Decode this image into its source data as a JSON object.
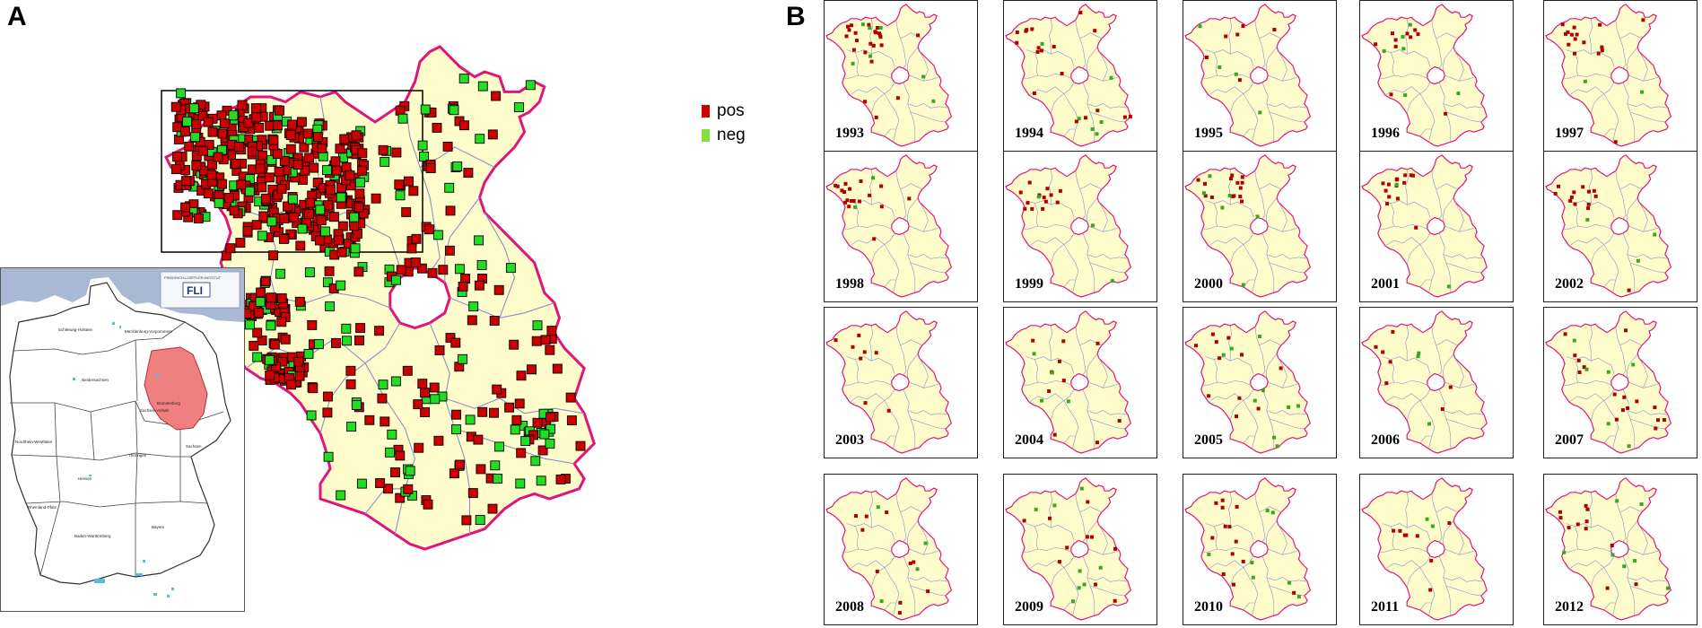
{
  "panels": {
    "a_label": "A",
    "b_label": "B"
  },
  "legend": {
    "pos_label": "pos",
    "neg_label": "neg",
    "pos_color": "#cc0000",
    "neg_color": "#22cc22"
  },
  "colors": {
    "region_fill": "#fffccc",
    "region_border": "#e0157a",
    "district_border": "#8a90c8",
    "pos_marker": "#cc0000",
    "neg_marker": "#22dd22",
    "highlight_state": "#f08080",
    "sea": "#a9b8d3"
  },
  "inset": {
    "logo_text": "FLI",
    "logo_caption": "FRIEDRICH-LOEFFLER-INSTITUT",
    "state_labels": [
      "Schleswig-Holstein",
      "Mecklenburg-Vorpommern",
      "Niedersachsen",
      "Sachsen-Anhalt",
      "Brandenburg",
      "Nordrhein-Westfalen",
      "Hessen",
      "Thüringen",
      "Sachsen",
      "Rheinland-Pfalz",
      "Bayern",
      "Baden-Württemberg"
    ]
  },
  "years": [
    "1993",
    "1994",
    "1995",
    "1996",
    "1997",
    "1998",
    "1999",
    "2000",
    "2001",
    "2002",
    "2003",
    "2004",
    "2005",
    "2006",
    "2007",
    "2008",
    "2009",
    "2010",
    "2011",
    "2012"
  ]
}
